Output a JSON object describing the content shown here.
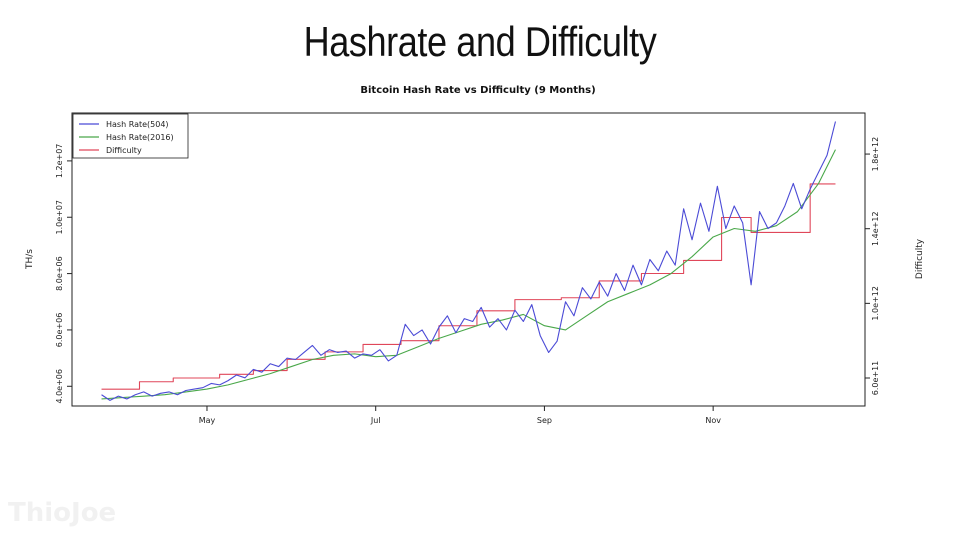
{
  "slide": {
    "title": "Hashrate and Difficulty",
    "watermark": "ThioJoe"
  },
  "colors": {
    "hash504": "#4b4bd6",
    "hash2016": "#4aa84a",
    "difficulty": "#e0475a",
    "axis": "#222222"
  },
  "chart_data": {
    "type": "line",
    "title": "Bitcoin Hash Rate vs Difficulty (9 Months)",
    "ylabel": "TH/s",
    "y2label": "Difficulty",
    "xlabel": "",
    "x_range_months": [
      3.4,
      12.8
    ],
    "xticks": [
      {
        "value": 5,
        "label": "May"
      },
      {
        "value": 7,
        "label": "Jul"
      },
      {
        "value": 9,
        "label": "Sep"
      },
      {
        "value": 11,
        "label": "Nov"
      }
    ],
    "ylim": [
      3300000,
      13700000
    ],
    "yticks": [
      {
        "value": 4000000,
        "label": "4.0e+06"
      },
      {
        "value": 6000000,
        "label": "6.0e+06"
      },
      {
        "value": 8000000,
        "label": "8.0e+06"
      },
      {
        "value": 10000000,
        "label": "1.0e+07"
      },
      {
        "value": 12000000,
        "label": "1.2e+07"
      }
    ],
    "y2lim": [
      450000000000,
      2020000000000
    ],
    "y2ticks": [
      {
        "value": 600000000000,
        "label": "6.0e+11"
      },
      {
        "value": 1000000000000,
        "label": "1.0e+12"
      },
      {
        "value": 1400000000000,
        "label": "1.4e+12"
      },
      {
        "value": 1800000000000,
        "label": "1.8e+12"
      }
    ],
    "legend": {
      "position": "top-left",
      "entries": [
        "Hash Rate(504)",
        "Hash Rate(2016)",
        "Difficulty"
      ]
    },
    "grid": false,
    "series": [
      {
        "name": "Hash Rate(504)",
        "axis": "left",
        "x": [
          3.75,
          3.85,
          3.95,
          4.05,
          4.15,
          4.25,
          4.35,
          4.45,
          4.55,
          4.65,
          4.75,
          4.85,
          4.95,
          5.05,
          5.15,
          5.25,
          5.35,
          5.45,
          5.55,
          5.65,
          5.75,
          5.85,
          5.95,
          6.05,
          6.15,
          6.25,
          6.35,
          6.45,
          6.55,
          6.65,
          6.75,
          6.85,
          6.95,
          7.05,
          7.15,
          7.25,
          7.35,
          7.45,
          7.55,
          7.65,
          7.75,
          7.85,
          7.95,
          8.05,
          8.15,
          8.25,
          8.35,
          8.45,
          8.55,
          8.65,
          8.75,
          8.85,
          8.95,
          9.05,
          9.15,
          9.25,
          9.35,
          9.45,
          9.55,
          9.65,
          9.75,
          9.85,
          9.95,
          10.05,
          10.15,
          10.25,
          10.35,
          10.45,
          10.55,
          10.65,
          10.75,
          10.85,
          10.95,
          11.05,
          11.15,
          11.25,
          11.35,
          11.45,
          11.55,
          11.65,
          11.75,
          11.85,
          11.95,
          12.05,
          12.15,
          12.25,
          12.35,
          12.45
        ],
        "values": [
          3700000,
          3500000,
          3650000,
          3550000,
          3700000,
          3800000,
          3650000,
          3750000,
          3800000,
          3700000,
          3850000,
          3900000,
          3950000,
          4100000,
          4050000,
          4200000,
          4400000,
          4300000,
          4600000,
          4500000,
          4800000,
          4700000,
          5000000,
          4950000,
          5200000,
          5450000,
          5100000,
          5300000,
          5200000,
          5250000,
          5000000,
          5150000,
          5100000,
          5300000,
          4900000,
          5100000,
          6200000,
          5800000,
          6000000,
          5500000,
          6100000,
          6500000,
          5900000,
          6400000,
          6300000,
          6800000,
          6100000,
          6400000,
          6000000,
          6700000,
          6300000,
          6900000,
          5800000,
          5200000,
          5600000,
          7000000,
          6500000,
          7500000,
          7100000,
          7700000,
          7200000,
          8000000,
          7400000,
          8300000,
          7600000,
          8500000,
          8100000,
          8800000,
          8300000,
          10300000,
          9200000,
          10500000,
          9500000,
          11100000,
          9600000,
          10400000,
          9800000,
          7600000,
          10200000,
          9600000,
          9800000,
          10400000,
          11200000,
          10300000,
          11000000,
          11600000,
          12200000,
          13400000
        ]
      },
      {
        "name": "Hash Rate(2016)",
        "axis": "left",
        "x": [
          3.75,
          4.0,
          4.25,
          4.5,
          4.75,
          5.0,
          5.25,
          5.5,
          5.75,
          6.0,
          6.25,
          6.5,
          6.75,
          7.0,
          7.25,
          7.5,
          7.75,
          8.0,
          8.25,
          8.5,
          8.75,
          9.0,
          9.25,
          9.5,
          9.75,
          10.0,
          10.25,
          10.5,
          10.75,
          11.0,
          11.25,
          11.5,
          11.75,
          12.0,
          12.25,
          12.45
        ],
        "values": [
          3550000,
          3600000,
          3650000,
          3700000,
          3800000,
          3900000,
          4050000,
          4250000,
          4450000,
          4700000,
          4950000,
          5100000,
          5150000,
          5050000,
          5100000,
          5400000,
          5700000,
          5950000,
          6200000,
          6350000,
          6550000,
          6150000,
          6000000,
          6500000,
          7000000,
          7300000,
          7600000,
          8000000,
          8600000,
          9300000,
          9600000,
          9500000,
          9700000,
          10200000,
          11200000,
          12400000
        ]
      },
      {
        "name": "Difficulty",
        "axis": "right",
        "step": true,
        "x": [
          3.75,
          4.2,
          4.6,
          5.15,
          5.55,
          5.95,
          6.4,
          6.85,
          7.3,
          7.75,
          8.2,
          8.65,
          9.2,
          9.65,
          10.15,
          10.65,
          11.1,
          11.45,
          12.15,
          12.45
        ],
        "values": [
          540000000000,
          580000000000,
          600000000000,
          620000000000,
          640000000000,
          700000000000,
          740000000000,
          780000000000,
          800000000000,
          880000000000,
          960000000000,
          1020000000000,
          1030000000000,
          1120000000000,
          1160000000000,
          1230000000000,
          1460000000000,
          1380000000000,
          1640000000000,
          1640000000000
        ]
      }
    ]
  }
}
